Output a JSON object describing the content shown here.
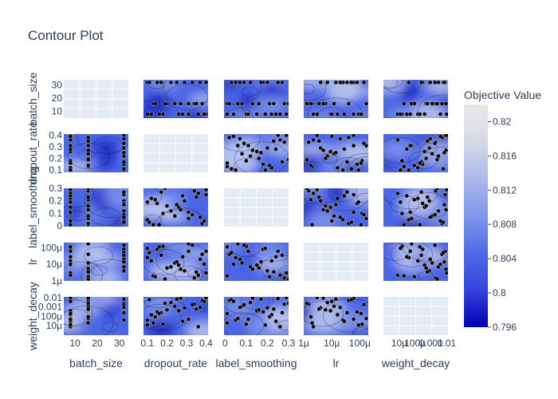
{
  "chart_data": {
    "type": "contour",
    "title": "Contour Plot",
    "parameters": [
      "batch_size",
      "dropout_rate",
      "label_smoothing",
      "lr",
      "weight_decay"
    ],
    "axes": {
      "batch_size": {
        "scale": "linear",
        "range": [
          5,
          34
        ],
        "ticks": [
          10,
          20,
          30
        ],
        "tick_labels": [
          "10",
          "20",
          "30"
        ]
      },
      "dropout_rate": {
        "scale": "linear",
        "range": [
          0.08,
          0.41
        ],
        "ticks": [
          0.1,
          0.2,
          0.3,
          0.4
        ],
        "tick_labels": [
          "0.1",
          "0.2",
          "0.3",
          "0.4"
        ]
      },
      "label_smoothing": {
        "scale": "linear",
        "range": [
          -0.005,
          0.3
        ],
        "ticks": [
          0,
          0.1,
          0.2,
          0.3
        ],
        "tick_labels": [
          "0",
          "0.1",
          "0.2",
          "0.3"
        ]
      },
      "lr": {
        "scale": "log",
        "range": [
          1e-06,
          0.0002
        ],
        "ticks": [
          1e-06,
          1e-05,
          0.0001
        ],
        "tick_labels": [
          "1μ",
          "10μ",
          "100μ"
        ]
      },
      "weight_decay": {
        "scale": "log",
        "range": [
          1e-06,
          0.012
        ],
        "ticks": [
          1e-05,
          0.0001,
          0.001,
          0.01
        ],
        "tick_labels": [
          "10μ",
          "100μ",
          "0.001",
          "0.01"
        ]
      }
    },
    "colorbar": {
      "title": "Objective Value",
      "range": [
        0.796,
        0.822
      ],
      "ticks": [
        0.796,
        0.8,
        0.804,
        0.808,
        0.812,
        0.816,
        0.82
      ],
      "tick_labels": [
        "0.796",
        "0.8",
        "0.804",
        "0.808",
        "0.812",
        "0.816",
        "0.82"
      ],
      "colorscale": [
        "#0000b3",
        "#3344dd",
        "#4f6ae6",
        "#7f97ea",
        "#aab9ea",
        "#d6d9e8",
        "#e8e8e8"
      ]
    },
    "trials": [
      {
        "batch_size": 16,
        "dropout_rate": 0.13,
        "label_smoothing": 0.01,
        "lr": 2e-06,
        "weight_decay": 2e-05
      },
      {
        "batch_size": 32,
        "dropout_rate": 0.4,
        "label_smoothing": 0.25,
        "lr": 6e-05,
        "weight_decay": 0.008
      },
      {
        "batch_size": 8,
        "dropout_rate": 0.26,
        "label_smoothing": 0.15,
        "lr": 9e-06,
        "weight_decay": 0.0004
      },
      {
        "batch_size": 32,
        "dropout_rate": 0.1,
        "label_smoothing": 0.05,
        "lr": 2.5e-05,
        "weight_decay": 4e-05
      },
      {
        "batch_size": 16,
        "dropout_rate": 0.34,
        "label_smoothing": 0.28,
        "lr": 1.5e-06,
        "weight_decay": 0.002
      },
      {
        "batch_size": 8,
        "dropout_rate": 0.18,
        "label_smoothing": 0.1,
        "lr": 0.00012,
        "weight_decay": 1.5e-05
      },
      {
        "batch_size": 32,
        "dropout_rate": 0.29,
        "label_smoothing": 0.2,
        "lr": 4e-06,
        "weight_decay": 0.0008
      },
      {
        "batch_size": 16,
        "dropout_rate": 0.38,
        "label_smoothing": 0.02,
        "lr": 4e-05,
        "weight_decay": 0.005
      },
      {
        "batch_size": 8,
        "dropout_rate": 0.12,
        "label_smoothing": 0.22,
        "lr": 1.6e-05,
        "weight_decay": 0.00015
      },
      {
        "batch_size": 32,
        "dropout_rate": 0.22,
        "label_smoothing": 0.12,
        "lr": 7e-06,
        "weight_decay": 0.003
      },
      {
        "batch_size": 16,
        "dropout_rate": 0.31,
        "label_smoothing": 0.06,
        "lr": 0.00017,
        "weight_decay": 6e-05
      },
      {
        "batch_size": 8,
        "dropout_rate": 0.4,
        "label_smoothing": 0.29,
        "lr": 3e-06,
        "weight_decay": 0.01
      },
      {
        "batch_size": 32,
        "dropout_rate": 0.15,
        "label_smoothing": 0.18,
        "lr": 8e-05,
        "weight_decay": 0.0003
      },
      {
        "batch_size": 16,
        "dropout_rate": 0.24,
        "label_smoothing": 0.08,
        "lr": 1.2e-05,
        "weight_decay": 0.0012
      },
      {
        "batch_size": 8,
        "dropout_rate": 0.36,
        "label_smoothing": 0.26,
        "lr": 2.2e-06,
        "weight_decay": 8e-06
      },
      {
        "batch_size": 32,
        "dropout_rate": 0.11,
        "label_smoothing": 0.03,
        "lr": 5e-05,
        "weight_decay": 0.006
      },
      {
        "batch_size": 16,
        "dropout_rate": 0.2,
        "label_smoothing": 0.16,
        "lr": 6e-06,
        "weight_decay": 0.0005
      },
      {
        "batch_size": 8,
        "dropout_rate": 0.28,
        "label_smoothing": 0.24,
        "lr": 2.8e-05,
        "weight_decay": 3e-05
      },
      {
        "batch_size": 32,
        "dropout_rate": 0.33,
        "label_smoothing": 0.09,
        "lr": 0.00014,
        "weight_decay": 0.0018
      },
      {
        "batch_size": 16,
        "dropout_rate": 0.14,
        "label_smoothing": 0.21,
        "lr": 1.8e-06,
        "weight_decay": 9e-05
      },
      {
        "batch_size": 8,
        "dropout_rate": 0.39,
        "label_smoothing": 0.04,
        "lr": 1e-05,
        "weight_decay": 0.004
      },
      {
        "batch_size": 32,
        "dropout_rate": 0.17,
        "label_smoothing": 0.27,
        "lr": 3.5e-05,
        "weight_decay": 0.00025
      },
      {
        "batch_size": 16,
        "dropout_rate": 0.27,
        "label_smoothing": 0.13,
        "lr": 5e-06,
        "weight_decay": 0.009
      },
      {
        "batch_size": 8,
        "dropout_rate": 0.1,
        "label_smoothing": 0.19,
        "lr": 9e-05,
        "weight_decay": 1.2e-05
      },
      {
        "batch_size": 32,
        "dropout_rate": 0.37,
        "label_smoothing": 0.07,
        "lr": 2e-05,
        "weight_decay": 0.0009
      },
      {
        "batch_size": 16,
        "dropout_rate": 0.19,
        "label_smoothing": 0.3,
        "lr": 1.3e-06,
        "weight_decay": 0.0025
      },
      {
        "batch_size": 8,
        "dropout_rate": 0.31,
        "label_smoothing": 0.11,
        "lr": 6e-05,
        "weight_decay": 5e-05
      },
      {
        "batch_size": 32,
        "dropout_rate": 0.25,
        "label_smoothing": 0.17,
        "lr": 1.4e-05,
        "weight_decay": 0.007
      },
      {
        "batch_size": 16,
        "dropout_rate": 0.35,
        "label_smoothing": 0.23,
        "lr": 3.5e-06,
        "weight_decay": 0.0006
      },
      {
        "batch_size": 8,
        "dropout_rate": 0.16,
        "label_smoothing": 0.01,
        "lr": 0.00011,
        "weight_decay": 0.0002
      }
    ]
  }
}
